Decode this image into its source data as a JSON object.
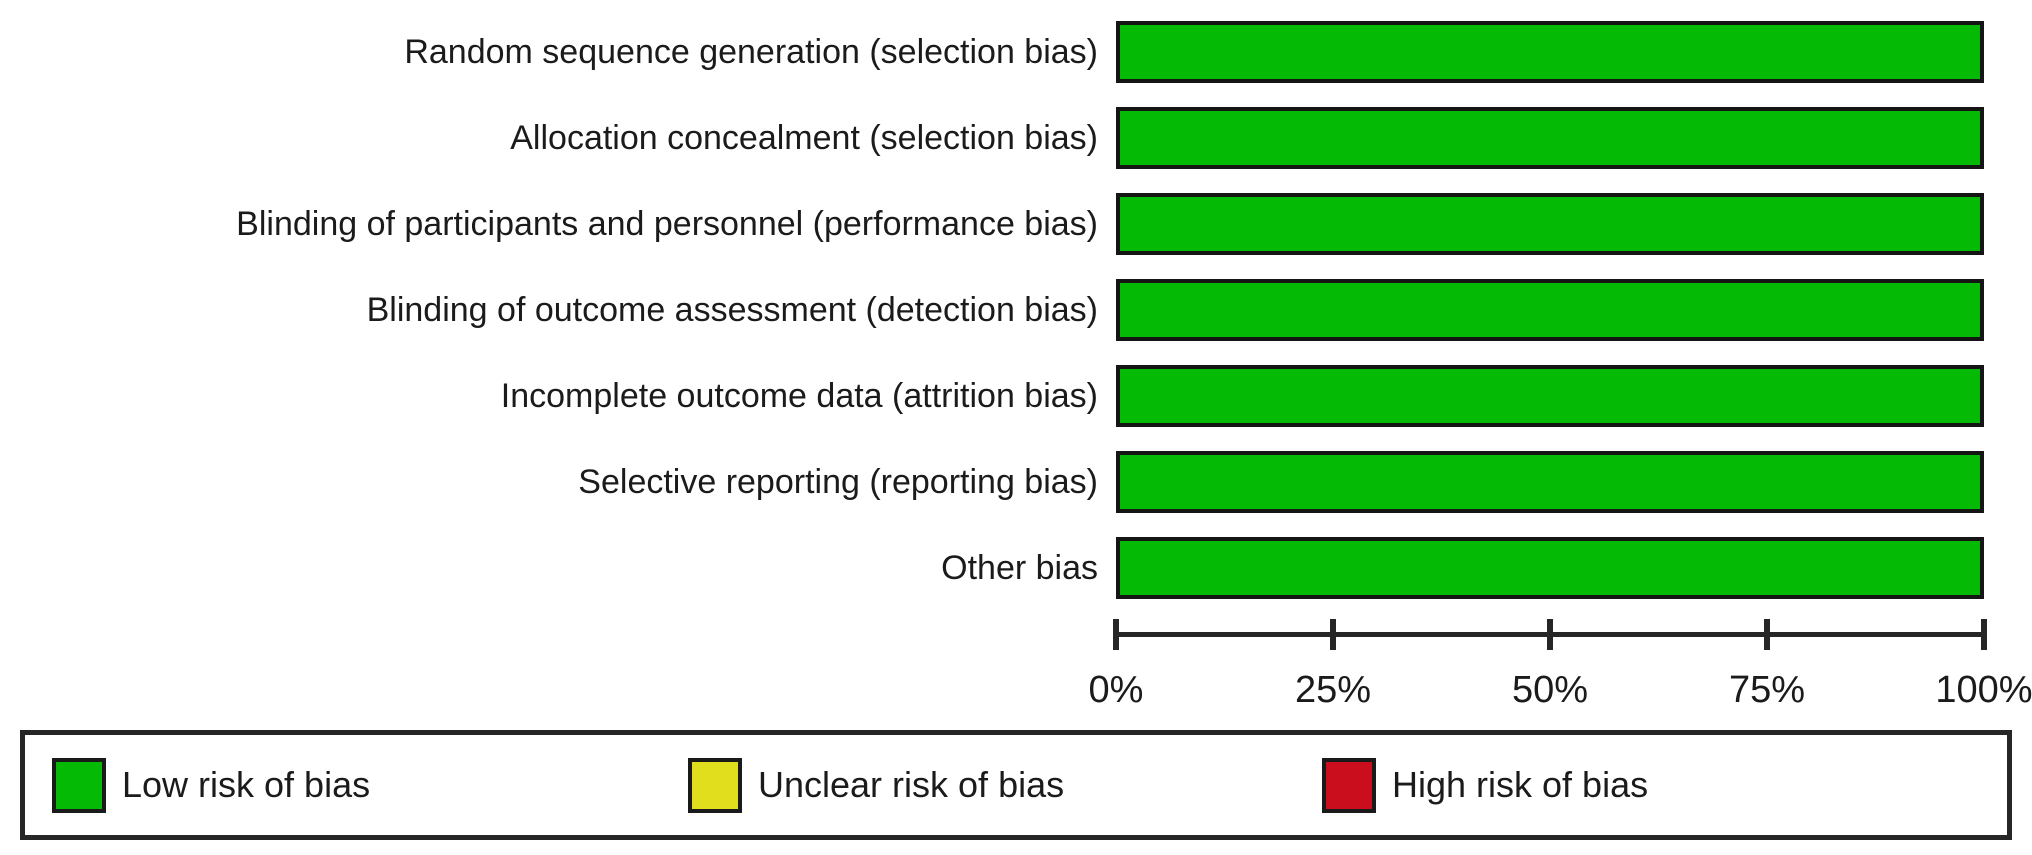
{
  "chart_data": {
    "type": "bar",
    "orientation": "horizontal",
    "title": "",
    "xlabel": "",
    "ylabel": "",
    "categories": [
      "Random sequence generation (selection bias)",
      "Allocation concealment (selection bias)",
      "Blinding of participants and personnel (performance bias)",
      "Blinding of outcome assessment (detection bias)",
      "Incomplete outcome data (attrition bias)",
      "Selective reporting (reporting bias)",
      "Other bias"
    ],
    "series": [
      {
        "name": "Low risk of bias",
        "color": "#05ba05",
        "values": [
          100,
          100,
          100,
          100,
          100,
          100,
          100
        ]
      },
      {
        "name": "Unclear risk of bias",
        "color": "#e1df1d",
        "values": [
          0,
          0,
          0,
          0,
          0,
          0,
          0
        ]
      },
      {
        "name": "High risk of bias",
        "color": "#ca0e1e",
        "values": [
          0,
          0,
          0,
          0,
          0,
          0,
          0
        ]
      }
    ],
    "xlim": [
      0,
      100
    ],
    "x_ticks": [
      "0%",
      "25%",
      "50%",
      "75%",
      "100%"
    ],
    "x_tick_positions": [
      0,
      25,
      50,
      75,
      100
    ],
    "grid": false,
    "legend_position": "bottom"
  },
  "legend": {
    "items": [
      {
        "label": "Low risk of bias",
        "color": "#05ba05"
      },
      {
        "label": "Unclear risk of bias",
        "color": "#e1df1d"
      },
      {
        "label": "High risk of bias",
        "color": "#ca0e1e"
      }
    ]
  }
}
